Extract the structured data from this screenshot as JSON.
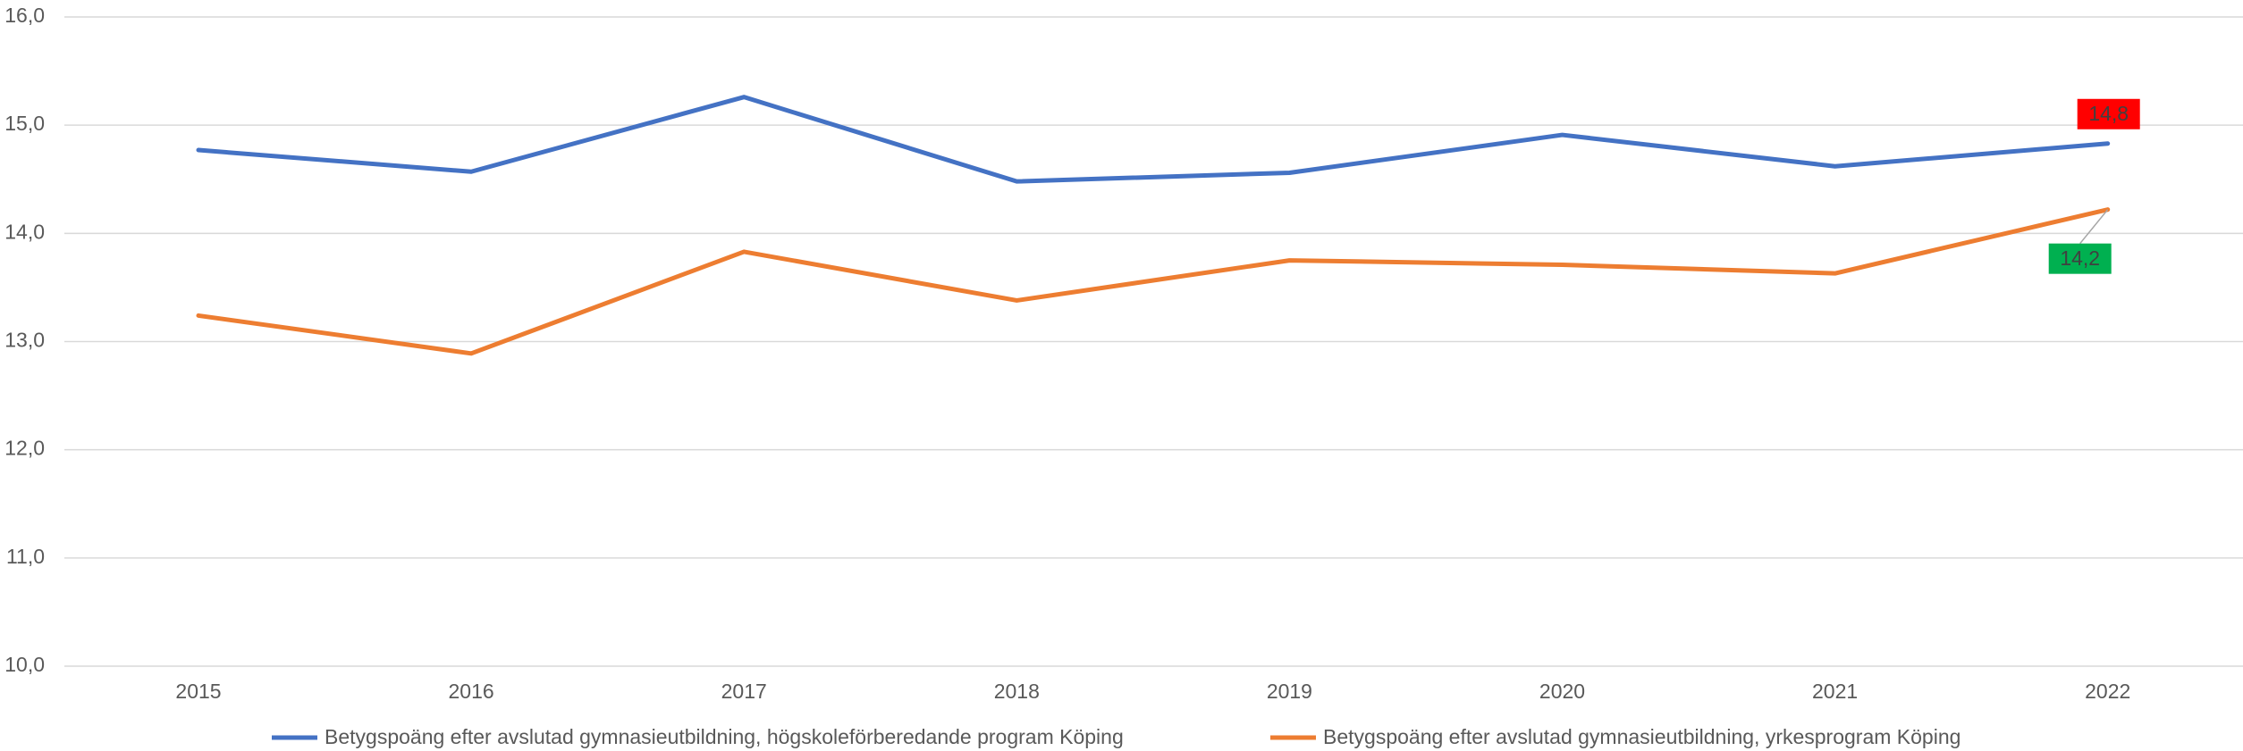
{
  "chart_data": {
    "type": "line",
    "categories": [
      "2015",
      "2016",
      "2017",
      "2018",
      "2019",
      "2020",
      "2021",
      "2022"
    ],
    "series": [
      {
        "name": "Betygspoäng efter avslutad gymnasieutbildning, högskoleförberedande program Köping",
        "color": "#4472c4",
        "values": [
          14.77,
          14.57,
          15.26,
          14.48,
          14.56,
          14.91,
          14.62,
          14.83
        ],
        "value_labels": [
          null,
          null,
          null,
          null,
          null,
          null,
          null,
          "14,8"
        ],
        "label_background": "#ff0000"
      },
      {
        "name": "Betygspoäng efter avslutad gymnasieutbildning, yrkesprogram Köping",
        "color": "#ed7d31",
        "values": [
          13.24,
          12.89,
          13.83,
          13.38,
          13.75,
          13.71,
          13.63,
          14.22
        ],
        "value_labels": [
          null,
          null,
          null,
          null,
          null,
          null,
          null,
          "14,2"
        ],
        "label_background": "#00b050"
      }
    ],
    "ylim": [
      10,
      16
    ],
    "yticks": [
      {
        "value": 10,
        "label": "10,0"
      },
      {
        "value": 11,
        "label": "11,0"
      },
      {
        "value": 12,
        "label": "12,0"
      },
      {
        "value": 13,
        "label": "13,0"
      },
      {
        "value": 14,
        "label": "14,0"
      },
      {
        "value": 15,
        "label": "15,0"
      },
      {
        "value": 16,
        "label": "16,0"
      }
    ],
    "grid": true,
    "legend": "bottom"
  }
}
